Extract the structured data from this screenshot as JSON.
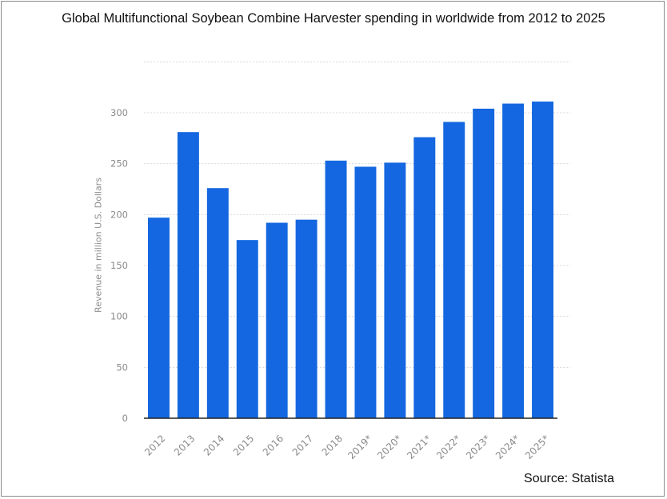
{
  "chart_data": {
    "type": "bar",
    "title": "Global Multifunctional Soybean Combine Harvester spending in worldwide from 2012 to 2025",
    "xlabel": "",
    "ylabel": "Revenue in million U.S. Dollars",
    "categories": [
      "2012",
      "2013",
      "2014",
      "2015",
      "2016",
      "2017",
      "2018",
      "2019*",
      "2020*",
      "2021*",
      "2022*",
      "2023*",
      "2024*",
      "2025*"
    ],
    "values": [
      197,
      281,
      226,
      175,
      192,
      195,
      253,
      247,
      251,
      276,
      291,
      304,
      309,
      311
    ],
    "y_ticks": [
      0,
      50,
      100,
      150,
      200,
      250,
      300
    ],
    "ylim": [
      0,
      350
    ],
    "grid": true,
    "bar_color": "#1467e0",
    "source": "Source: Statista"
  }
}
